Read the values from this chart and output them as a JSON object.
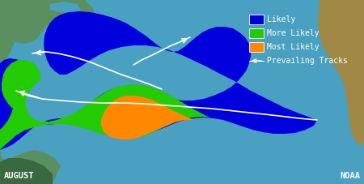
{
  "bg_ocean": "#4aa0c0",
  "colors": {
    "blue": "#0000dd",
    "green": "#22cc00",
    "orange": "#ff8800",
    "white": "#ffffff",
    "land_na": "#5a9060",
    "land_africa": "#a08845",
    "land_dark": "#3a6840"
  },
  "title_left": "AUGUST",
  "title_right": "NOAA",
  "legend_items": [
    {
      "label": "Likely",
      "color": "#0000dd"
    },
    {
      "label": "More Likely",
      "color": "#22cc00"
    },
    {
      "label": "Most Likely",
      "color": "#ff8800"
    }
  ],
  "legend_arrow_label": "Prevailing Tracks",
  "figsize": [
    4.5,
    2.27
  ],
  "dpi": 100
}
